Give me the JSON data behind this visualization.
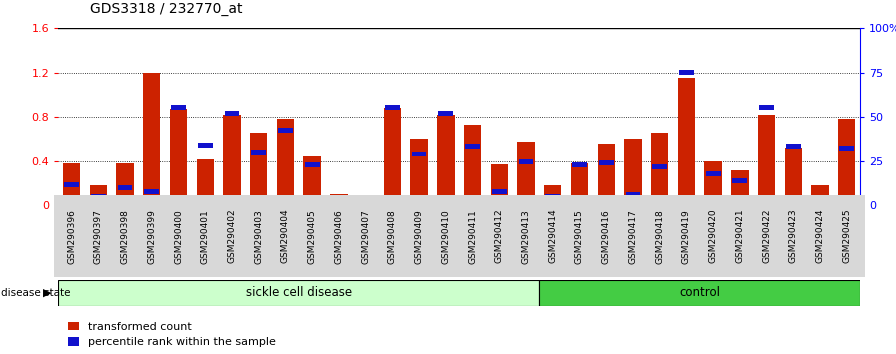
{
  "title": "GDS3318 / 232770_at",
  "samples": [
    "GSM290396",
    "GSM290397",
    "GSM290398",
    "GSM290399",
    "GSM290400",
    "GSM290401",
    "GSM290402",
    "GSM290403",
    "GSM290404",
    "GSM290405",
    "GSM290406",
    "GSM290407",
    "GSM290408",
    "GSM290409",
    "GSM290410",
    "GSM290411",
    "GSM290412",
    "GSM290413",
    "GSM290414",
    "GSM290415",
    "GSM290416",
    "GSM290417",
    "GSM290418",
    "GSM290419",
    "GSM290420",
    "GSM290421",
    "GSM290422",
    "GSM290423",
    "GSM290424",
    "GSM290425"
  ],
  "transformed_count": [
    0.38,
    0.18,
    0.38,
    1.2,
    0.87,
    0.42,
    0.82,
    0.65,
    0.78,
    0.45,
    0.1,
    0.08,
    0.88,
    0.6,
    0.82,
    0.73,
    0.37,
    0.57,
    0.18,
    0.38,
    0.55,
    0.6,
    0.65,
    1.15,
    0.4,
    0.32,
    0.82,
    0.52,
    0.18,
    0.78
  ],
  "percentile_rank_pct": [
    12,
    5,
    10,
    8,
    55,
    34,
    52,
    30,
    42,
    23,
    3,
    3,
    55,
    29,
    52,
    33,
    8,
    25,
    5,
    23,
    24,
    6,
    22,
    75,
    18,
    14,
    55,
    33,
    4,
    32
  ],
  "sickle_count": 18,
  "control_count": 12,
  "bar_color": "#cc2200",
  "dot_color": "#1111cc",
  "ylim_left": [
    0,
    1.6
  ],
  "ylim_right": [
    0,
    100
  ],
  "yticks_left": [
    0,
    0.4,
    0.8,
    1.2,
    1.6
  ],
  "ytick_labels_right": [
    "0",
    "25",
    "50",
    "75",
    "100%"
  ],
  "background_color": "#ffffff",
  "plot_bg": "#ffffff",
  "sickle_label": "sickle cell disease",
  "control_label": "control",
  "disease_state_label": "disease state",
  "legend_transformed": "transformed count",
  "legend_percentile": "percentile rank within the sample",
  "sickle_color": "#ccffcc",
  "control_color": "#44cc44",
  "bar_width": 0.65
}
